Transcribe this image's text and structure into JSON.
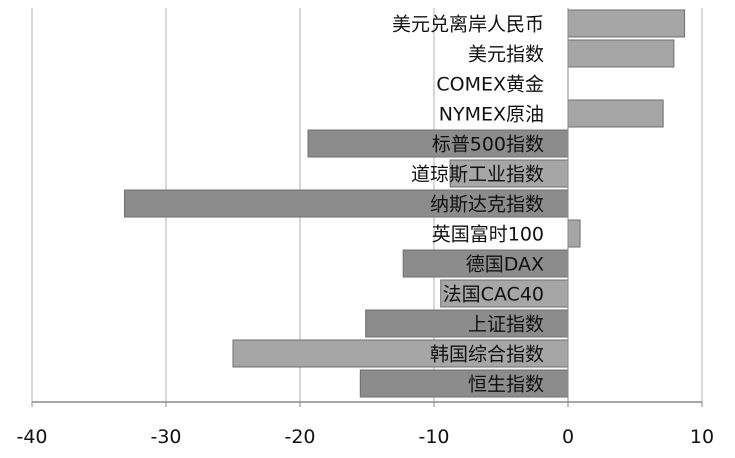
{
  "chart_data": {
    "type": "bar",
    "orientation": "horizontal",
    "title": "",
    "xlabel": "",
    "ylabel": "",
    "xlim": [
      -40,
      10
    ],
    "xticks": [
      "-40",
      "-30",
      "-20",
      "-10",
      "0",
      "10"
    ],
    "grid": "vertical",
    "legend": "none",
    "categories": [
      "美元兑离岸人民币",
      "美元指数",
      "COMEX黄金",
      "NYMEX原油",
      "标普500指数",
      "道琼斯工业指数",
      "纳斯达克指数",
      "英国富时100",
      "德国DAX",
      "法国CAC40",
      "上证指数",
      "韩国综合指数",
      "恒生指数"
    ],
    "values": [
      8.7,
      7.9,
      0,
      7.1,
      -19.4,
      -8.8,
      -33.1,
      0.9,
      -12.3,
      -9.5,
      -15.1,
      -25.0,
      -15.5
    ],
    "colors": {
      "positive_bar": "#a6a6a6",
      "negative_bar_light": "#a6a6a6",
      "negative_bar_dark": "#8c8c8c",
      "bar_stroke": "#6f6f6f",
      "gridline": "#b0b0b0",
      "axis": "#8a8a8a"
    }
  }
}
